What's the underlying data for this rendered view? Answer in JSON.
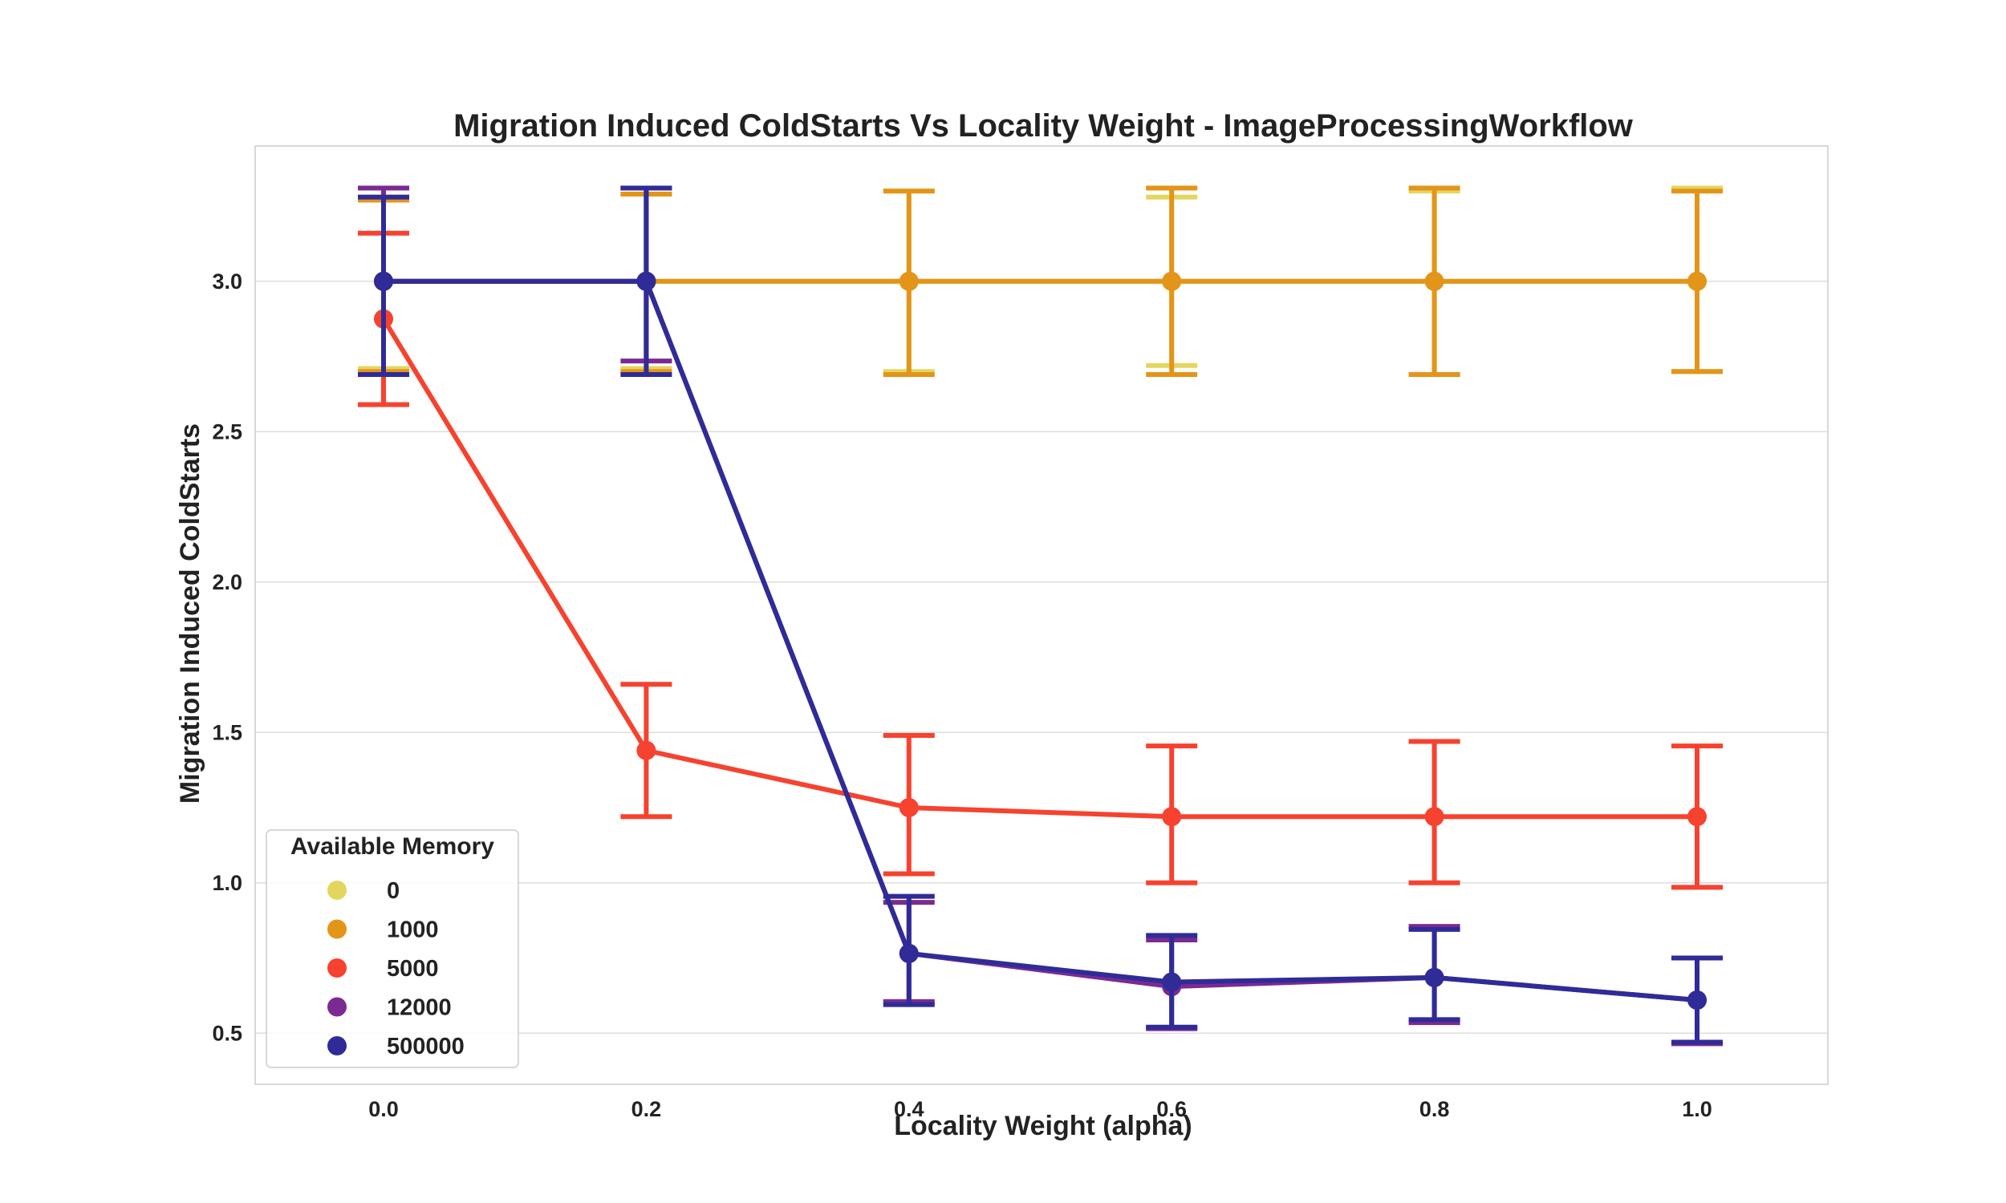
{
  "chart_data": {
    "type": "line",
    "title": "Migration Induced ColdStarts Vs Locality Weight - ImageProcessingWorkflow",
    "xlabel": "Locality Weight (alpha)",
    "ylabel": "Migration Induced ColdStarts",
    "categories": [
      "0.0",
      "0.2",
      "0.4",
      "0.6",
      "0.8",
      "1.0"
    ],
    "ylim": [
      0.33,
      3.45
    ],
    "yticks": [
      "0.5",
      "1.0",
      "1.5",
      "2.0",
      "2.5",
      "3.0"
    ],
    "grid": true,
    "legend": {
      "title": "Available Memory",
      "placement": "lower-left"
    },
    "series": [
      {
        "name": "0",
        "color": "#e3d65f",
        "values": [
          3.0,
          3.0,
          3.0,
          3.0,
          3.0,
          3.0
        ],
        "err_low": [
          2.71,
          2.71,
          2.7,
          2.72,
          2.69,
          2.7
        ],
        "err_high": [
          3.28,
          3.29,
          3.3,
          3.28,
          3.3,
          3.31
        ]
      },
      {
        "name": "1000",
        "color": "#e39519",
        "values": [
          3.0,
          3.0,
          3.0,
          3.0,
          3.0,
          3.0
        ],
        "err_low": [
          2.7,
          2.7,
          2.69,
          2.69,
          2.69,
          2.7
        ],
        "err_high": [
          3.27,
          3.29,
          3.3,
          3.31,
          3.31,
          3.3
        ]
      },
      {
        "name": "5000",
        "color": "#f6422e",
        "values": [
          2.875,
          1.44,
          1.25,
          1.22,
          1.22,
          1.22
        ],
        "err_low": [
          2.59,
          1.22,
          1.03,
          1.0,
          1.0,
          0.985
        ],
        "err_high": [
          3.16,
          1.66,
          1.49,
          1.455,
          1.47,
          1.455
        ]
      },
      {
        "name": "12000",
        "color": "#7b2a93",
        "values": [
          3.0,
          3.0,
          0.765,
          0.655,
          0.685,
          0.61
        ],
        "err_low": [
          2.69,
          2.735,
          0.605,
          0.515,
          0.535,
          0.465
        ],
        "err_high": [
          3.31,
          3.31,
          0.935,
          0.81,
          0.855,
          0.75
        ]
      },
      {
        "name": "500000",
        "color": "#2f2b97",
        "values": [
          3.0,
          3.0,
          0.765,
          0.67,
          0.685,
          0.61
        ],
        "err_low": [
          2.69,
          2.69,
          0.595,
          0.52,
          0.545,
          0.47
        ],
        "err_high": [
          3.28,
          3.31,
          0.955,
          0.825,
          0.845,
          0.75
        ]
      }
    ]
  }
}
